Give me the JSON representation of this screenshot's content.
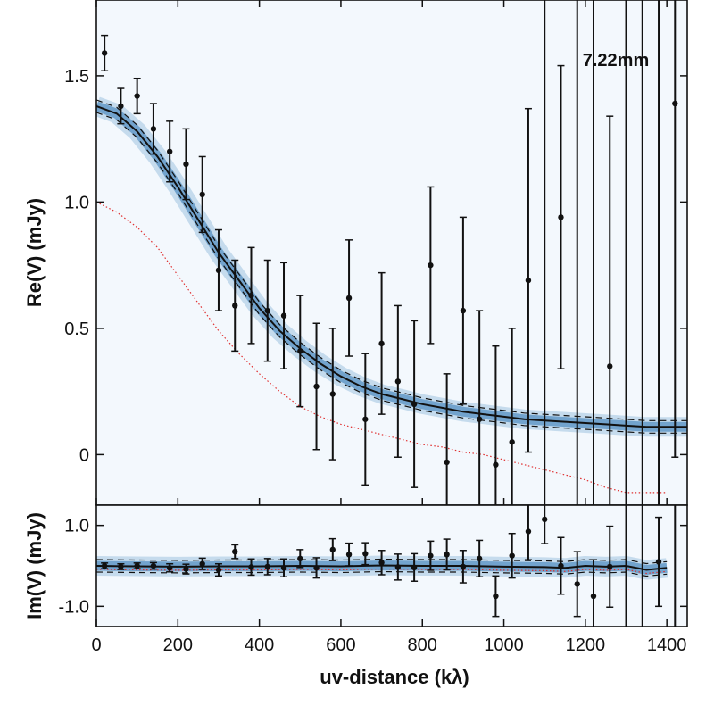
{
  "chart_data": [
    {
      "panel": "top",
      "type": "scatter",
      "annotation": "7.22mm",
      "xlabel": "uv-distance (kλ)",
      "ylabel": "Re(V) (mJy)",
      "xlim": [
        0,
        1450
      ],
      "ylim": [
        -0.2,
        1.8
      ],
      "xticks": [
        0,
        200,
        400,
        600,
        800,
        1000,
        1200,
        1400
      ],
      "yticks": [
        0,
        0.5,
        1.0,
        1.5
      ],
      "ytick_labels": [
        "0",
        "0.5",
        "1.0",
        "1.5"
      ],
      "data_points": {
        "x": [
          20,
          60,
          100,
          140,
          180,
          220,
          260,
          300,
          340,
          380,
          420,
          460,
          500,
          540,
          580,
          620,
          660,
          700,
          740,
          780,
          820,
          860,
          900,
          940,
          980,
          1020,
          1060,
          1100,
          1140,
          1180,
          1220,
          1260,
          1300,
          1340,
          1380,
          1420
        ],
        "y": [
          1.59,
          1.38,
          1.42,
          1.29,
          1.2,
          1.15,
          1.03,
          0.73,
          0.59,
          0.63,
          0.57,
          0.55,
          0.41,
          0.27,
          0.24,
          0.62,
          0.14,
          0.44,
          0.29,
          0.2,
          0.75,
          -0.03,
          0.57,
          0.14,
          -0.04,
          0.05,
          0.69,
          null,
          0.94,
          null,
          null,
          0.35,
          null,
          null,
          null,
          1.39
        ],
        "err": [
          0.07,
          0.07,
          0.07,
          0.1,
          0.12,
          0.14,
          0.15,
          0.16,
          0.18,
          0.19,
          0.2,
          0.21,
          0.22,
          0.25,
          0.26,
          0.23,
          0.26,
          0.28,
          0.3,
          0.33,
          0.31,
          0.35,
          0.37,
          0.43,
          0.47,
          0.45,
          0.68,
          0.5,
          0.6,
          0.5,
          0.6,
          0.99,
          1.2,
          0.7,
          1.0,
          1.4
        ]
      },
      "model_curve": {
        "x": [
          0,
          50,
          100,
          150,
          200,
          250,
          300,
          350,
          400,
          450,
          500,
          550,
          600,
          650,
          700,
          750,
          800,
          850,
          900,
          950,
          1000,
          1050,
          1100,
          1150,
          1200,
          1250,
          1300,
          1350,
          1400,
          1450
        ],
        "y": [
          1.38,
          1.35,
          1.28,
          1.18,
          1.06,
          0.93,
          0.8,
          0.69,
          0.58,
          0.49,
          0.42,
          0.36,
          0.31,
          0.27,
          0.24,
          0.22,
          0.2,
          0.185,
          0.17,
          0.16,
          0.15,
          0.14,
          0.135,
          0.13,
          0.125,
          0.12,
          0.115,
          0.11,
          0.11,
          0.11
        ]
      },
      "secondary_curve": {
        "x": [
          0,
          50,
          100,
          150,
          200,
          250,
          300,
          350,
          400,
          450,
          500,
          550,
          600,
          650,
          700,
          750,
          800,
          850,
          900,
          950,
          1000,
          1050,
          1100,
          1150,
          1200,
          1250,
          1300,
          1350,
          1400
        ],
        "y": [
          1.0,
          0.96,
          0.9,
          0.82,
          0.71,
          0.6,
          0.49,
          0.4,
          0.32,
          0.25,
          0.19,
          0.15,
          0.12,
          0.1,
          0.08,
          0.06,
          0.04,
          0.03,
          0.01,
          0.0,
          -0.02,
          -0.04,
          -0.06,
          -0.08,
          -0.1,
          -0.13,
          -0.15,
          -0.15,
          -0.15
        ]
      }
    },
    {
      "panel": "bottom",
      "type": "scatter",
      "xlabel": "uv-distance (kλ)",
      "ylabel": "Im(V) (mJy)",
      "xlim": [
        0,
        1450
      ],
      "ylim": [
        -1.5,
        1.5
      ],
      "yticks": [
        -1.0,
        1.0
      ],
      "ytick_labels": [
        "-1.0",
        "1.0"
      ],
      "data_points": {
        "x": [
          20,
          60,
          100,
          140,
          180,
          220,
          260,
          300,
          340,
          380,
          420,
          460,
          500,
          540,
          580,
          620,
          660,
          700,
          740,
          780,
          820,
          860,
          900,
          940,
          980,
          1020,
          1060,
          1100,
          1140,
          1180,
          1220,
          1260,
          1300,
          1340,
          1380,
          1420
        ],
        "y": [
          0.0,
          -0.02,
          0.0,
          0.0,
          -0.05,
          -0.08,
          0.05,
          -0.1,
          0.35,
          -0.03,
          -0.02,
          -0.05,
          0.18,
          -0.05,
          0.4,
          0.28,
          0.3,
          0.08,
          -0.03,
          -0.04,
          0.25,
          0.28,
          -0.02,
          0.18,
          -0.75,
          0.25,
          0.85,
          1.15,
          0.0,
          -0.45,
          -0.75,
          -0.02,
          null,
          null,
          0.1,
          null
        ],
        "err": [
          0.07,
          0.07,
          0.07,
          0.08,
          0.1,
          0.12,
          0.14,
          0.15,
          0.17,
          0.2,
          0.2,
          0.22,
          0.22,
          0.25,
          0.27,
          0.28,
          0.27,
          0.3,
          0.32,
          0.34,
          0.36,
          0.38,
          0.4,
          0.45,
          0.5,
          0.55,
          0.7,
          0.6,
          0.7,
          0.8,
          0.9,
          1.0,
          1.2,
          0.9,
          1.1,
          1.3
        ]
      },
      "model_curve": {
        "x": [
          0,
          100,
          200,
          300,
          400,
          500,
          600,
          700,
          800,
          900,
          1000,
          1100,
          1150,
          1200,
          1250,
          1300,
          1350,
          1400
        ],
        "y": [
          0.0,
          -0.01,
          -0.02,
          -0.01,
          -0.01,
          0.0,
          -0.01,
          0.01,
          0.0,
          0.0,
          -0.02,
          -0.03,
          -0.05,
          0.0,
          -0.02,
          0.0,
          -0.1,
          -0.05
        ]
      }
    }
  ]
}
